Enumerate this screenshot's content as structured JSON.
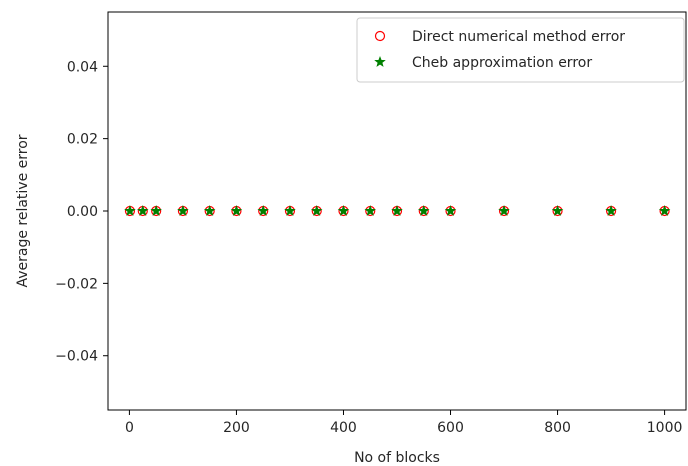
{
  "chart_data": {
    "type": "scatter",
    "title": "",
    "xlabel": "No of blocks",
    "ylabel": "Average relative error",
    "xlim": [
      -40,
      1040
    ],
    "ylim": [
      -0.055,
      0.055
    ],
    "xticks": [
      0,
      200,
      400,
      600,
      800,
      1000
    ],
    "xtick_labels": [
      "0",
      "200",
      "400",
      "600",
      "800",
      "1000"
    ],
    "yticks": [
      -0.04,
      -0.02,
      0.0,
      0.02,
      0.04
    ],
    "ytick_labels": [
      "−0.04",
      "−0.02",
      "0.00",
      "0.02",
      "0.04"
    ],
    "grid": false,
    "legend_position": "top-right",
    "x": [
      1,
      25,
      50,
      100,
      150,
      200,
      250,
      300,
      350,
      400,
      450,
      500,
      550,
      600,
      700,
      800,
      900,
      1000
    ],
    "series": [
      {
        "name": "Direct numerical method error",
        "marker": "circle-open",
        "color": "#ff0000",
        "values": [
          0,
          0,
          0,
          0,
          0,
          0,
          0,
          0,
          0,
          0,
          0,
          0,
          0,
          0,
          0,
          0,
          0,
          0
        ]
      },
      {
        "name": "Cheb approximation error",
        "marker": "star",
        "color": "#008000",
        "values": [
          0,
          0,
          0,
          0,
          0,
          0,
          0,
          0,
          0,
          0,
          0,
          0,
          0,
          0,
          0,
          0,
          0,
          0
        ]
      }
    ]
  }
}
